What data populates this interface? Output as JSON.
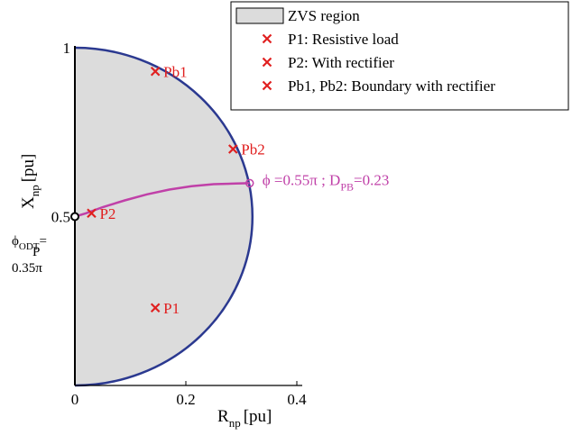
{
  "chart_data": {
    "type": "scatter",
    "xlabel": "R",
    "xlabel_sub": "np",
    "xlabel_unit": "[pu]",
    "ylabel": "X",
    "ylabel_sub": "np",
    "ylabel_unit": "[pu]",
    "xlim": [
      0,
      0.8
    ],
    "ylim": [
      0,
      1
    ],
    "x_ticks": [
      {
        "value": 0,
        "label": "0"
      },
      {
        "value": 0.2,
        "label": "0.2"
      },
      {
        "value": 0.4,
        "label": "0.4"
      }
    ],
    "y_ticks": [
      {
        "value": 0.5,
        "label": "0.5"
      },
      {
        "value": 1,
        "label": "1"
      }
    ],
    "grid": false,
    "legend_position": "top-right",
    "colors": {
      "region_fill": "#dcdcdc",
      "boundary": "#2b3990",
      "points": "#e02020",
      "trajectory": "#c040a8"
    },
    "zvs_region": {
      "name": "ZVS region",
      "center": [
        0,
        0.5
      ],
      "radius_x": 0.32,
      "radius_y": 0.5
    },
    "points": [
      {
        "label": "Pb1",
        "x": 0.145,
        "y": 0.93
      },
      {
        "label": "Pb2",
        "x": 0.285,
        "y": 0.7
      },
      {
        "label": "P2",
        "x": 0.03,
        "y": 0.51
      },
      {
        "label": "P1",
        "x": 0.145,
        "y": 0.23
      }
    ],
    "trajectory": {
      "x": [
        0,
        0.02,
        0.05,
        0.09,
        0.13,
        0.17,
        0.21,
        0.25,
        0.29,
        0.315
      ],
      "y": [
        0.5,
        0.51,
        0.528,
        0.548,
        0.566,
        0.58,
        0.59,
        0.596,
        0.598,
        0.599
      ]
    },
    "trajectory_end": {
      "x": 0.315,
      "y": 0.599
    },
    "trajectory_start": {
      "x": 0,
      "y": 0.5
    },
    "trajectory_annotation": {
      "phi": "ϕ =0.55π ; D",
      "sub": "PB",
      "value": "=0.23"
    },
    "phi_annotation": {
      "phi": "ϕ",
      "sub": "ODT",
      "subsub": "P",
      "eq": "=",
      "value": "0.35π"
    },
    "legend": [
      {
        "kind": "patch",
        "label": "ZVS region"
      },
      {
        "kind": "marker",
        "label": "P1: Resistive load"
      },
      {
        "kind": "marker",
        "label": "P2: With rectifier"
      },
      {
        "kind": "marker",
        "label": "Pb1, Pb2: Boundary with rectifier"
      }
    ]
  }
}
